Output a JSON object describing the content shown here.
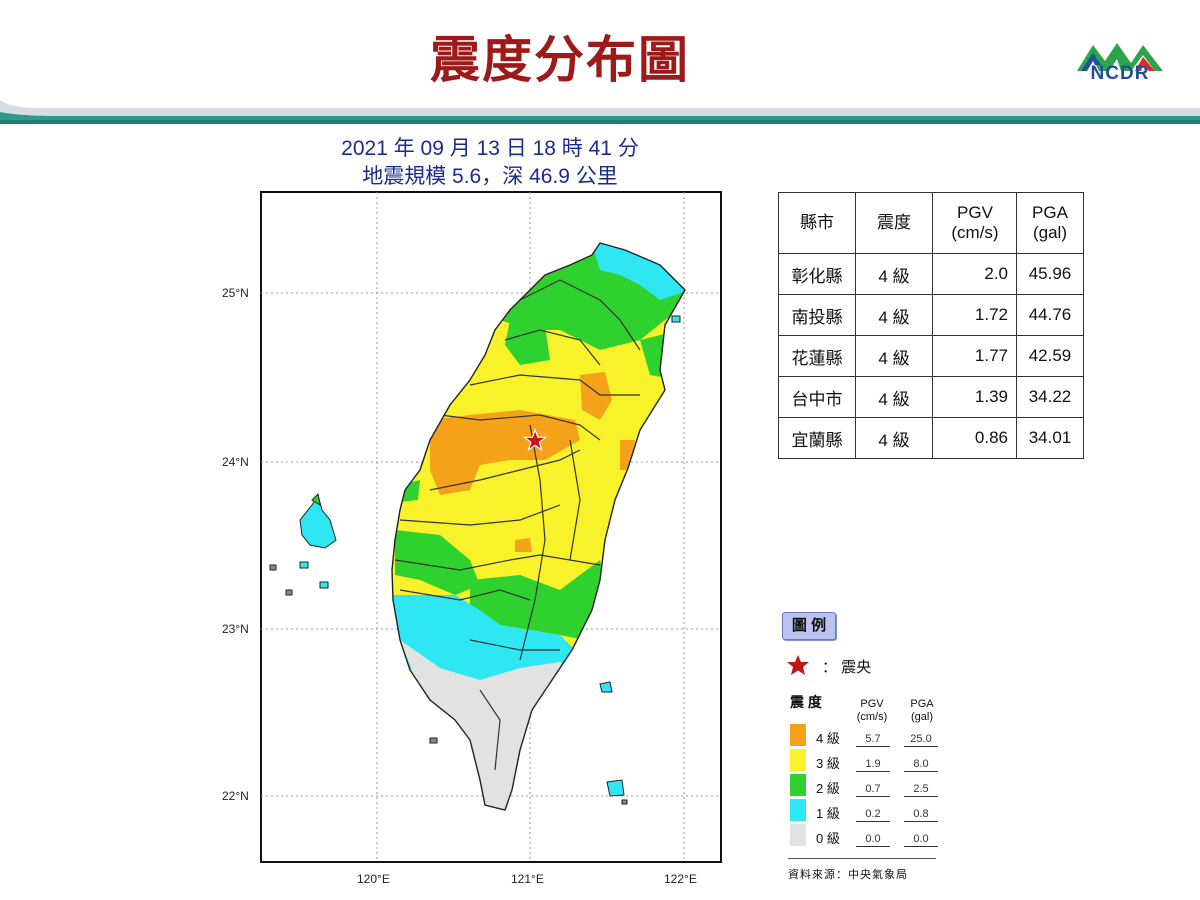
{
  "header": {
    "title": "震度分布圖",
    "logo_text": "NCDR"
  },
  "event": {
    "line1": "2021 年 09 月 13 日 18 時 41 分",
    "line2": "地震規模 5.6，深 46.9 公里"
  },
  "map": {
    "lat_labels": [
      "25°N",
      "24°N",
      "23°N",
      "22°N"
    ],
    "lon_labels": [
      "120°E",
      "121°E",
      "122°E"
    ],
    "epicenter": {
      "lon": 121.03,
      "lat": 24.12
    },
    "colors": {
      "l0": "#e2e2e2",
      "l1": "#2ee7f3",
      "l2": "#2ed12e",
      "l3": "#f8f22a",
      "l4": "#f5a21b",
      "epicenter": "#c4151a"
    }
  },
  "table": {
    "headers": [
      "縣市",
      "震度",
      "PGV (cm/s)",
      "PGA (gal)"
    ],
    "header_pgv": [
      "PGV",
      "(cm/s)"
    ],
    "header_pga": [
      "PGA",
      "(gal)"
    ],
    "rows": [
      {
        "county": "彰化縣",
        "intensity": "4 級",
        "pgv": "2.0",
        "pga": "45.96"
      },
      {
        "county": "南投縣",
        "intensity": "4 級",
        "pgv": "1.72",
        "pga": "44.76"
      },
      {
        "county": "花蓮縣",
        "intensity": "4 級",
        "pgv": "1.77",
        "pga": "42.59"
      },
      {
        "county": "台中市",
        "intensity": "4 級",
        "pgv": "1.39",
        "pga": "34.22"
      },
      {
        "county": "宜蘭縣",
        "intensity": "4 級",
        "pgv": "0.86",
        "pga": "34.01"
      }
    ]
  },
  "legend": {
    "title": "圖 例",
    "epicenter_label": "：  震央",
    "col_intensity": "震 度",
    "col_pgv": [
      "PGV",
      "(cm/s)"
    ],
    "col_pga": [
      "PGA",
      "(gal)"
    ],
    "levels": [
      {
        "label": "4 級",
        "pgv": "5.7",
        "pga": "25.0",
        "color": "#f5a21b"
      },
      {
        "label": "3 級",
        "pgv": "1.9",
        "pga": "8.0",
        "color": "#f8f22a"
      },
      {
        "label": "2 級",
        "pgv": "0.7",
        "pga": "2.5",
        "color": "#2ed12e"
      },
      {
        "label": "1 級",
        "pgv": "0.2",
        "pga": "0.8",
        "color": "#2ee7f3"
      },
      {
        "label": "0 級",
        "pgv": "0.0",
        "pga": "0.0",
        "color": "#e2e2e2"
      }
    ],
    "source": "資料來源：中央氣象局"
  }
}
